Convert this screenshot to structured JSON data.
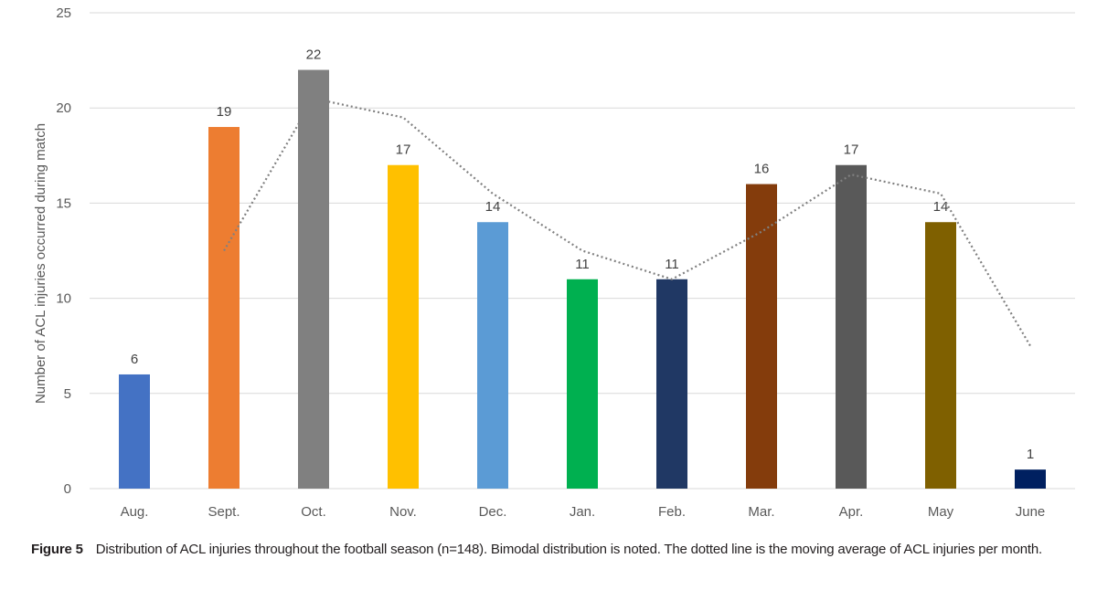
{
  "chart_data": {
    "type": "bar",
    "title": "",
    "xlabel": "",
    "ylabel": "Number of ACL injuries occurred during match",
    "ylim": [
      0,
      25
    ],
    "yticks": [
      0,
      5,
      10,
      15,
      20,
      25
    ],
    "grid": true,
    "categories": [
      "Aug.",
      "Sept.",
      "Oct.",
      "Nov.",
      "Dec.",
      "Jan.",
      "Feb.",
      "Mar.",
      "Apr.",
      "May",
      "June"
    ],
    "values": [
      6,
      19,
      22,
      17,
      14,
      11,
      11,
      16,
      17,
      14,
      1
    ],
    "colors": [
      "#4472C4",
      "#ED7D31",
      "#808080",
      "#FFC000",
      "#5B9BD5",
      "#00B050",
      "#203864",
      "#843C0C",
      "#595959",
      "#7F6000",
      "#002060"
    ],
    "moving_average": {
      "style": "dotted",
      "color": "#808080",
      "values": [
        null,
        12.5,
        20.5,
        19.5,
        15.5,
        12.5,
        11,
        13.5,
        16.5,
        15.5,
        7.5
      ]
    }
  },
  "caption": {
    "label": "Figure 5",
    "text": "Distribution of ACL injuries throughout the football season (n=148). Bimodal distribution is noted. The dotted line is the moving average of ACL injuries per month."
  }
}
